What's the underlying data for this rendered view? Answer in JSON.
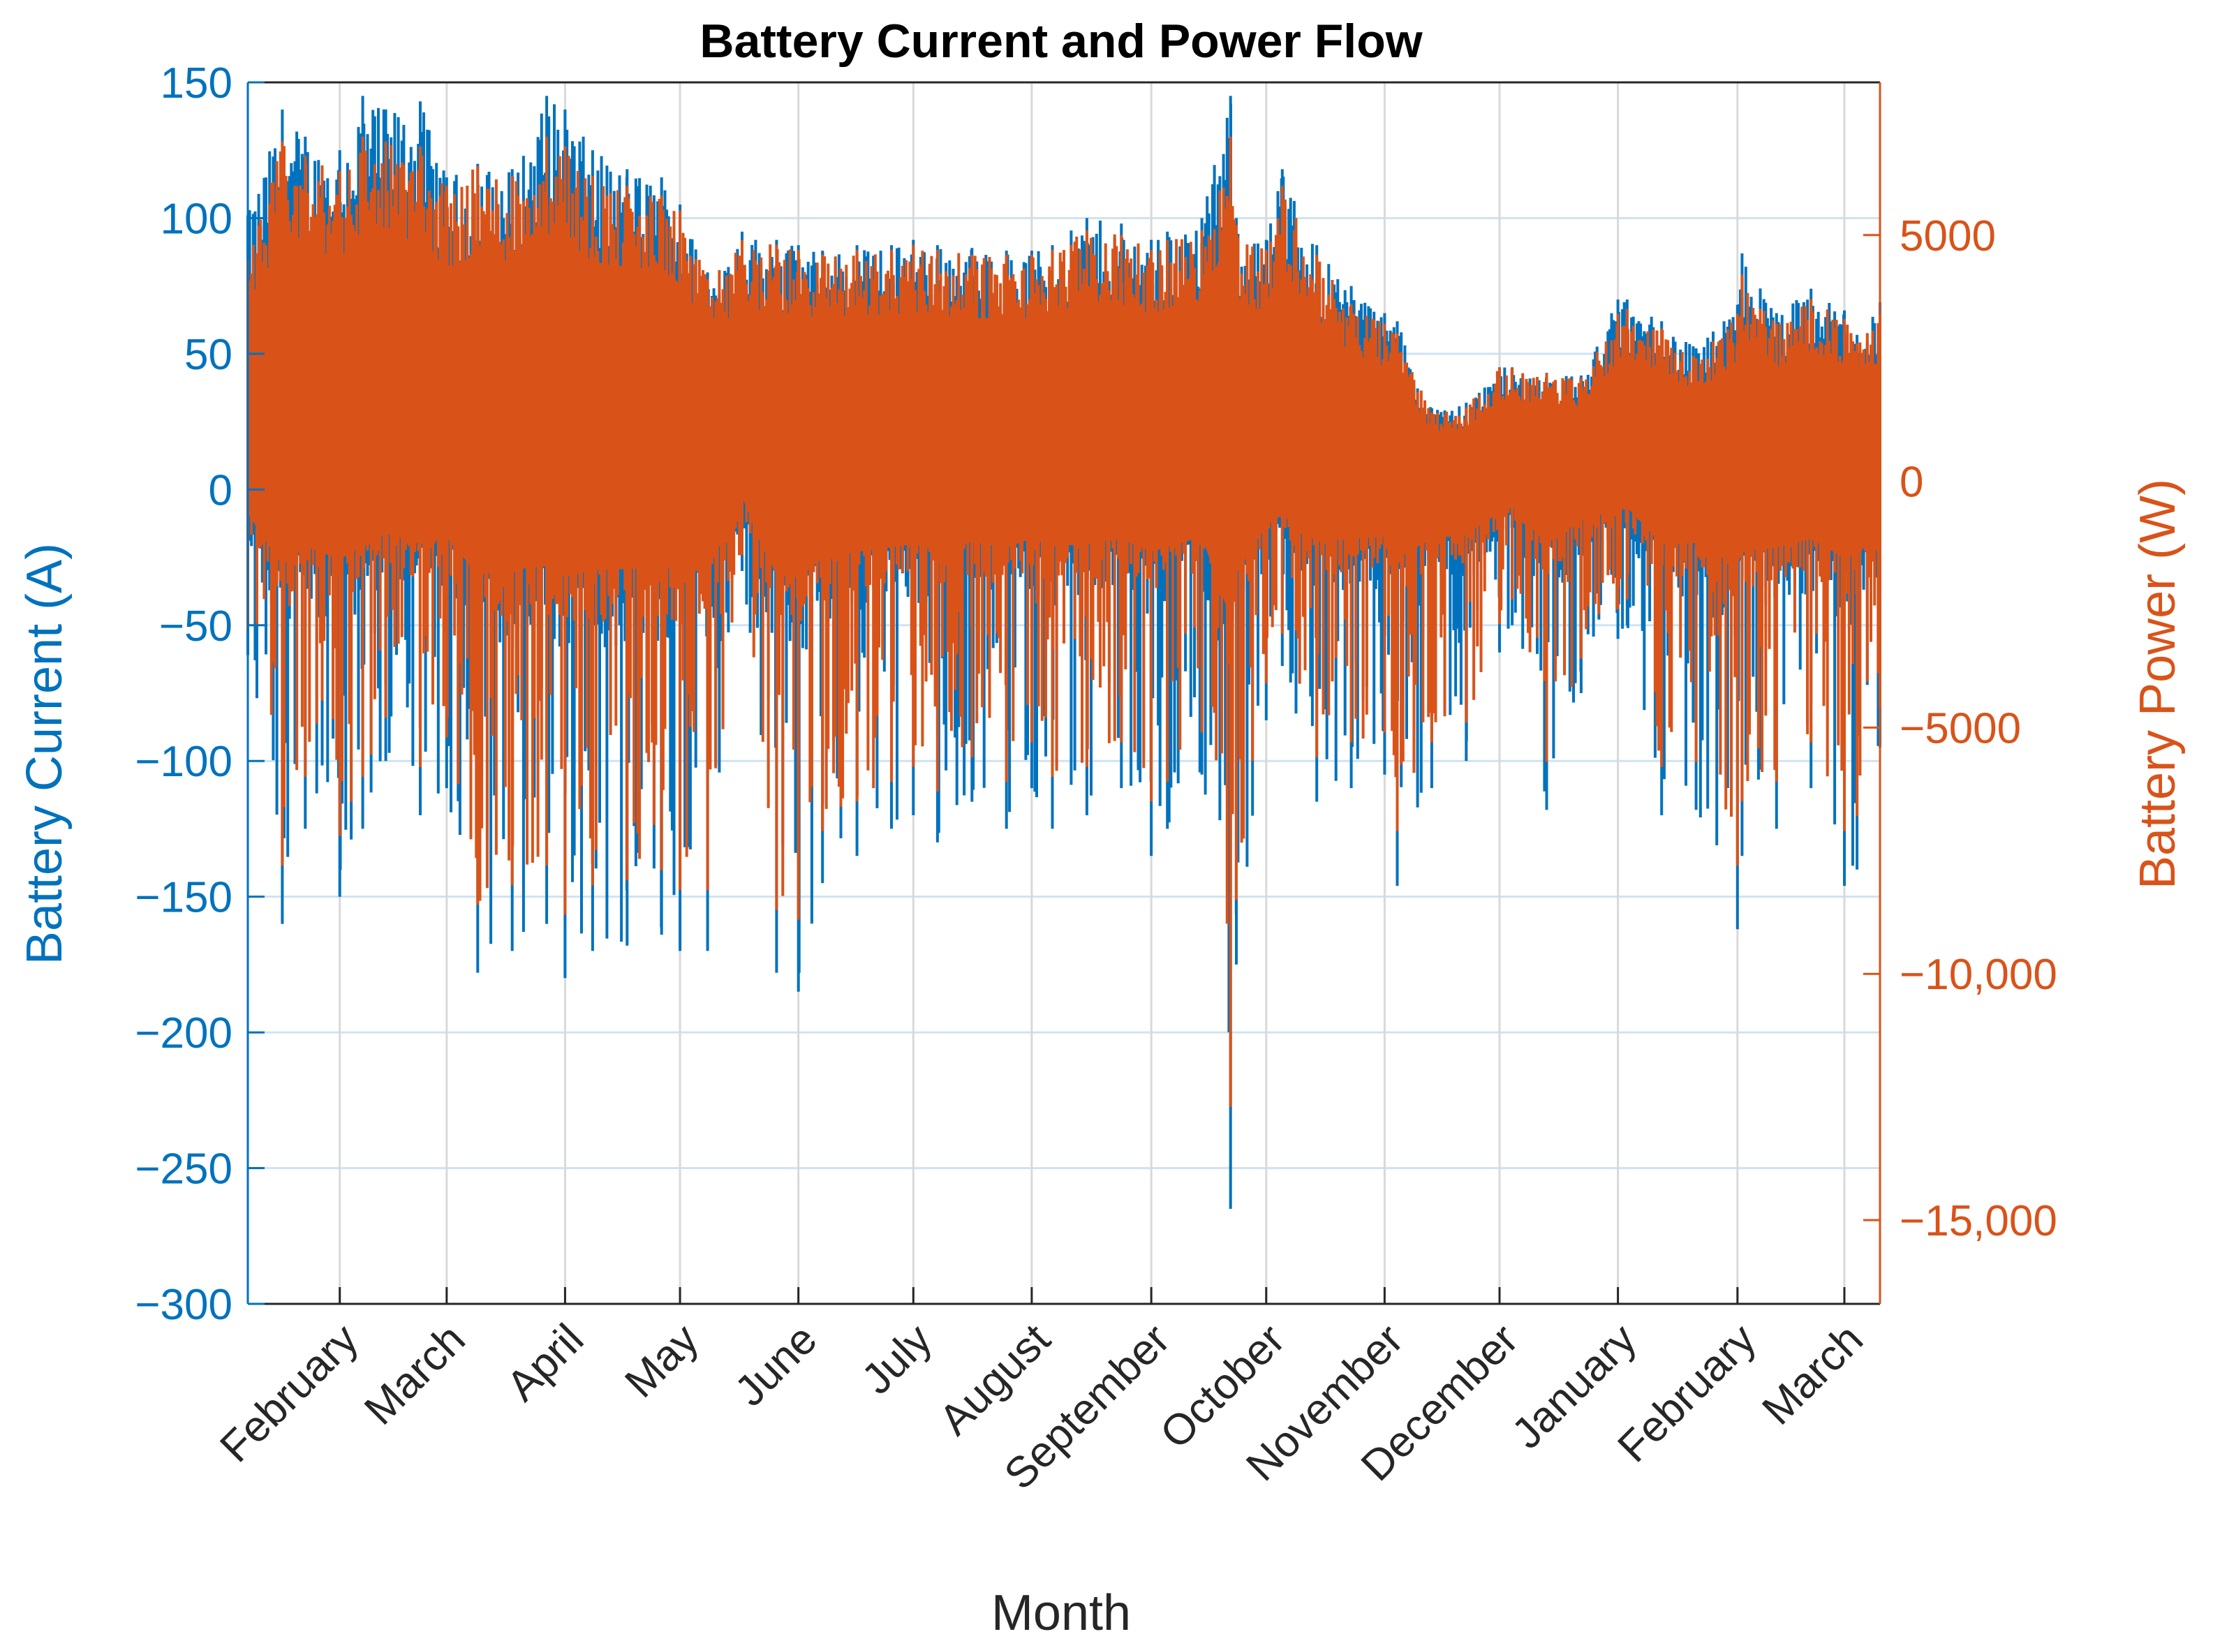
{
  "chart_data": {
    "type": "line",
    "title": "Battery Current and Power Flow",
    "xlabel": "Month",
    "ylabel_left": "Battery Current (A)",
    "ylabel_right": "Battery Power (W)",
    "ylim_left": [
      -300,
      150
    ],
    "ylim_right": [
      -16700,
      8100
    ],
    "yticks_left": [
      {
        "value": 150,
        "label": "150"
      },
      {
        "value": 100,
        "label": "100"
      },
      {
        "value": 50,
        "label": "50"
      },
      {
        "value": 0,
        "label": "0"
      },
      {
        "value": -50,
        "label": "−50"
      },
      {
        "value": -100,
        "label": "−100"
      },
      {
        "value": -150,
        "label": "−150"
      },
      {
        "value": -200,
        "label": "−200"
      },
      {
        "value": -250,
        "label": "−250"
      },
      {
        "value": -300,
        "label": "−300"
      }
    ],
    "yticks_right": [
      {
        "value": 5000,
        "label": "5000"
      },
      {
        "value": 0,
        "label": "0"
      },
      {
        "value": -5000,
        "label": "−5000"
      },
      {
        "value": -10000,
        "label": "−10,000"
      },
      {
        "value": -15000,
        "label": "−15,000"
      }
    ],
    "xlim": [
      0,
      14.2
    ],
    "xticks": [
      {
        "value": 0.8,
        "label": "February"
      },
      {
        "value": 1.73,
        "label": "March"
      },
      {
        "value": 2.76,
        "label": "April"
      },
      {
        "value": 3.76,
        "label": "May"
      },
      {
        "value": 4.79,
        "label": "June"
      },
      {
        "value": 5.79,
        "label": "July"
      },
      {
        "value": 6.82,
        "label": "August"
      },
      {
        "value": 7.86,
        "label": "September"
      },
      {
        "value": 8.86,
        "label": "October"
      },
      {
        "value": 9.89,
        "label": "November"
      },
      {
        "value": 10.89,
        "label": "December"
      },
      {
        "value": 11.92,
        "label": "January"
      },
      {
        "value": 12.96,
        "label": "February"
      },
      {
        "value": 13.89,
        "label": "March"
      }
    ],
    "grid": true,
    "series": [
      {
        "axis": "left",
        "color": "#0072BD",
        "x": [
          0.0,
          0.3,
          0.5,
          0.8,
          1.0,
          1.2,
          1.5,
          1.73,
          2.0,
          2.3,
          2.6,
          2.76,
          3.0,
          3.3,
          3.6,
          3.76,
          4.0,
          4.3,
          4.6,
          4.79,
          5.0,
          5.3,
          5.6,
          5.79,
          6.0,
          6.3,
          6.6,
          6.82,
          7.0,
          7.3,
          7.6,
          7.86,
          8.0,
          8.3,
          8.55,
          8.6,
          8.86,
          9.0,
          9.3,
          9.6,
          9.89,
          10.0,
          10.3,
          10.6,
          10.89,
          11.0,
          11.3,
          11.6,
          11.92,
          12.0,
          12.3,
          12.6,
          12.96,
          13.0,
          13.3,
          13.6,
          13.89,
          14.0,
          14.2
        ],
        "upper": [
          101,
          140,
          130,
          125,
          145,
          140,
          143,
          115,
          120,
          118,
          145,
          140,
          125,
          118,
          115,
          105,
          80,
          95,
          92,
          90,
          88,
          90,
          90,
          92,
          90,
          89,
          88,
          88,
          90,
          100,
          98,
          92,
          95,
          100,
          145,
          100,
          92,
          118,
          90,
          75,
          65,
          62,
          30,
          32,
          45,
          45,
          43,
          42,
          70,
          70,
          62,
          52,
          68,
          87,
          65,
          74,
          66,
          57,
          69
        ],
        "lower": [
          -61,
          -160,
          -125,
          -150,
          -125,
          -100,
          -120,
          -110,
          -178,
          -170,
          -160,
          -180,
          -170,
          -168,
          -164,
          -170,
          -170,
          -30,
          -178,
          -185,
          -145,
          -135,
          -125,
          -120,
          -130,
          -115,
          -125,
          -110,
          -125,
          -120,
          -110,
          -135,
          -125,
          -105,
          -265,
          -175,
          -85,
          -65,
          -115,
          -110,
          -105,
          -146,
          -110,
          -100,
          -60,
          -50,
          -118,
          -75,
          -55,
          -50,
          -120,
          -118,
          -162,
          -135,
          -125,
          -110,
          -146,
          -140,
          -95
        ]
      },
      {
        "axis": "right",
        "color": "#D95319",
        "x": [
          0.0,
          0.3,
          0.5,
          0.8,
          1.0,
          1.2,
          1.5,
          1.73,
          2.0,
          2.3,
          2.6,
          2.76,
          3.0,
          3.3,
          3.6,
          3.76,
          4.0,
          4.3,
          4.6,
          4.79,
          5.0,
          5.3,
          5.6,
          5.79,
          6.0,
          6.3,
          6.6,
          6.82,
          7.0,
          7.3,
          7.6,
          7.86,
          8.0,
          8.3,
          8.55,
          8.6,
          8.86,
          9.0,
          9.3,
          9.6,
          9.89,
          10.0,
          10.3,
          10.6,
          10.89,
          11.0,
          11.3,
          11.6,
          11.92,
          12.0,
          12.3,
          12.6,
          12.96,
          13.0,
          13.3,
          13.6,
          13.89,
          14.0,
          14.2
        ],
        "upper": [
          4500,
          6900,
          6600,
          6300,
          7000,
          6900,
          6800,
          6000,
          6400,
          6200,
          7000,
          6800,
          6200,
          6000,
          5800,
          5500,
          4100,
          4900,
          4800,
          4700,
          4600,
          4700,
          4700,
          4800,
          4700,
          4600,
          4600,
          4600,
          4700,
          5100,
          5000,
          4700,
          4900,
          5100,
          7000,
          5200,
          4700,
          6000,
          4600,
          3600,
          3200,
          3000,
          1400,
          1500,
          2300,
          2300,
          2200,
          2100,
          3400,
          3500,
          3100,
          2500,
          3400,
          4200,
          3200,
          3700,
          3300,
          2800,
          3400
        ],
        "lower": [
          -3000,
          -7800,
          -6000,
          -7200,
          -6000,
          -4800,
          -5800,
          -5200,
          -8600,
          -8200,
          -7800,
          -8800,
          -8200,
          -8100,
          -7900,
          -8300,
          -8300,
          -1500,
          -8700,
          -8900,
          -7100,
          -6500,
          -6100,
          -5800,
          -6300,
          -5600,
          -6100,
          -5300,
          -6000,
          -5800,
          -5300,
          -6500,
          -6100,
          -5100,
          -12700,
          -8500,
          -4100,
          -3100,
          -5600,
          -5300,
          -5100,
          -7100,
          -5300,
          -4900,
          -2900,
          -2400,
          -5700,
          -3600,
          -2600,
          -2400,
          -5800,
          -5700,
          -7800,
          -6500,
          -6100,
          -5300,
          -7100,
          -6800,
          -4600
        ]
      }
    ]
  }
}
